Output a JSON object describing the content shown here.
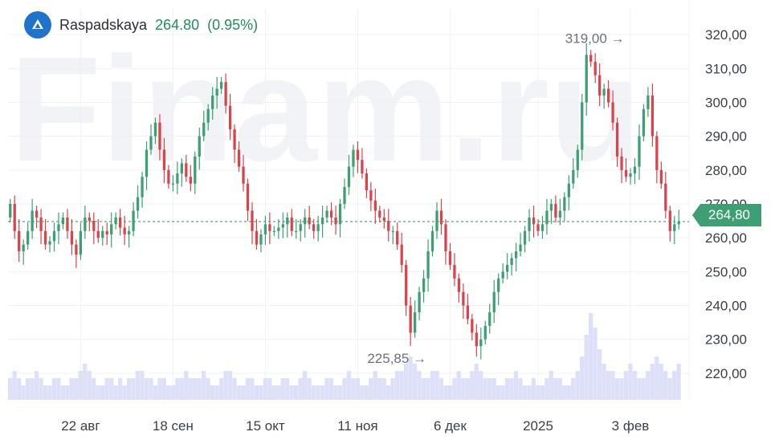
{
  "watermark": "Finam.ru",
  "header": {
    "name": "Raspadskaya",
    "price": "264.80",
    "change": "(0.95%)"
  },
  "colors": {
    "up": "#3f9f74",
    "down": "#d8434c",
    "volume": "#dde0f8",
    "grid": "#eef0f4",
    "last_line": "#3f9f74",
    "axis_text": "#3a3f4b",
    "logo": "#1f73c9"
  },
  "chart_data": {
    "type": "candlestick",
    "y_axis": {
      "min": 215,
      "max": 325,
      "position": "right",
      "ticks": [
        "320,00",
        "310,00",
        "300,00",
        "290,00",
        "280,00",
        "270,00",
        "260,00",
        "250,00",
        "240,00",
        "230,00",
        "220,00"
      ],
      "tick_values": [
        320,
        310,
        300,
        290,
        280,
        270,
        260,
        250,
        240,
        230,
        220
      ]
    },
    "x_axis": {
      "labels": [
        "22 авг",
        "18 сен",
        "15 окт",
        "11 ноя",
        "6 дек",
        "2025",
        "3 фев"
      ],
      "label_index": [
        16,
        37,
        58,
        79,
        100,
        120,
        141
      ]
    },
    "grid": true,
    "last_price": {
      "value": 264.8,
      "label": "264,80"
    },
    "annotations": [
      {
        "text": "319,00 →",
        "value": 319.0,
        "index": 140,
        "side": "left-above"
      },
      {
        "text": "225,85 →",
        "value": 225.85,
        "index": 95,
        "side": "left-below"
      }
    ],
    "closes": [
      270,
      262,
      256,
      258,
      262,
      268,
      266,
      262,
      258,
      259,
      262,
      264,
      266,
      262,
      258,
      255,
      262,
      266,
      265,
      262,
      260,
      262,
      261,
      264,
      266,
      263,
      261,
      262,
      268,
      272,
      278,
      286,
      290,
      294,
      286,
      280,
      276,
      276,
      279,
      282,
      278,
      276,
      284,
      290,
      294,
      298,
      302,
      304,
      306,
      299,
      292,
      286,
      281,
      276,
      268,
      262,
      258,
      261,
      264,
      262,
      262,
      263,
      264,
      266,
      262,
      262,
      264,
      266,
      264,
      262,
      264,
      266,
      268,
      266,
      264,
      270,
      275,
      281,
      286,
      283,
      279,
      274,
      271,
      268,
      266,
      265,
      262,
      262,
      258,
      252,
      240,
      232,
      238,
      244,
      248,
      256,
      262,
      268,
      264,
      256,
      252,
      248,
      244,
      240,
      236,
      232,
      228,
      230,
      234,
      238,
      244,
      248,
      250,
      252,
      254,
      256,
      258,
      262,
      266,
      264,
      262,
      264,
      268,
      270,
      266,
      268,
      272,
      276,
      280,
      286,
      300,
      314,
      312,
      308,
      302,
      304,
      300,
      294,
      284,
      280,
      278,
      279,
      281,
      290,
      298,
      302,
      290,
      280,
      276,
      268,
      262,
      264,
      264.8
    ],
    "volume": [
      3,
      4,
      3,
      2,
      3,
      3,
      4,
      3,
      2,
      2,
      3,
      3,
      2,
      2,
      3,
      3,
      4,
      5,
      4,
      3,
      2,
      2,
      3,
      3,
      2,
      3,
      2,
      3,
      3,
      4,
      4,
      3,
      3,
      2,
      3,
      3,
      2,
      2,
      3,
      3,
      4,
      3,
      3,
      3,
      4,
      3,
      2,
      2,
      3,
      4,
      4,
      3,
      2,
      2,
      3,
      3,
      2,
      2,
      3,
      3,
      2,
      2,
      3,
      3,
      2,
      2,
      3,
      4,
      3,
      2,
      2,
      2,
      3,
      3,
      2,
      2,
      3,
      4,
      3,
      3,
      2,
      2,
      3,
      4,
      3,
      3,
      2,
      3,
      4,
      4,
      5,
      6,
      5,
      4,
      3,
      3,
      4,
      4,
      3,
      2,
      2,
      3,
      4,
      3,
      3,
      4,
      5,
      4,
      3,
      3,
      3,
      2,
      2,
      3,
      3,
      4,
      3,
      2,
      2,
      3,
      2,
      2,
      3,
      4,
      3,
      3,
      2,
      2,
      3,
      4,
      6,
      9,
      12,
      10,
      7,
      5,
      4,
      4,
      3,
      3,
      4,
      5,
      4,
      3,
      3,
      4,
      5,
      6,
      5,
      4,
      3,
      4,
      5
    ]
  }
}
